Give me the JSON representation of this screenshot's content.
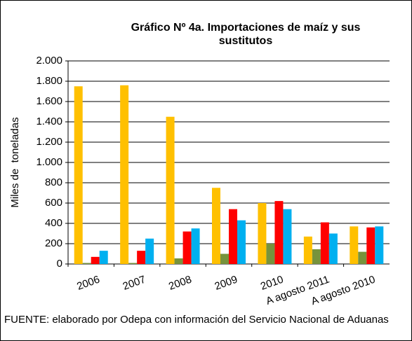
{
  "chart_data": {
    "type": "bar",
    "title": "Gráfico Nº 4a. Importaciones de maíz y sus sustitutos",
    "y_label": "Miles de  toneladas",
    "source": "FUENTE: elaborado por Odepa con información del Servicio Nacional de Aduanas",
    "categories": [
      "2006",
      "2007",
      "2008",
      "2009",
      "2010",
      "A agosto 2011",
      "A agosto 2010"
    ],
    "series": [
      {
        "color": "#ffc000",
        "values": [
          1750,
          1760,
          1450,
          750,
          600,
          270,
          370
        ]
      },
      {
        "color": "#77933c",
        "values": [
          10,
          10,
          55,
          100,
          200,
          145,
          120
        ]
      },
      {
        "color": "#ff0000",
        "values": [
          70,
          130,
          320,
          540,
          620,
          410,
          360
        ]
      },
      {
        "color": "#00b0f0",
        "values": [
          130,
          250,
          350,
          430,
          540,
          300,
          370
        ]
      }
    ],
    "ylim": [
      0,
      2000
    ],
    "yticks": [
      0,
      200,
      400,
      600,
      800,
      {
        "value": 1000,
        "label": "1.000"
      },
      {
        "value": 1200,
        "label": "1.200"
      },
      {
        "value": 1400,
        "label": "1.400"
      },
      {
        "value": 1600,
        "label": "1.600"
      },
      {
        "value": 1800,
        "label": "1.800"
      },
      {
        "value": 2000,
        "label": "2.000"
      }
    ],
    "grid": true
  }
}
